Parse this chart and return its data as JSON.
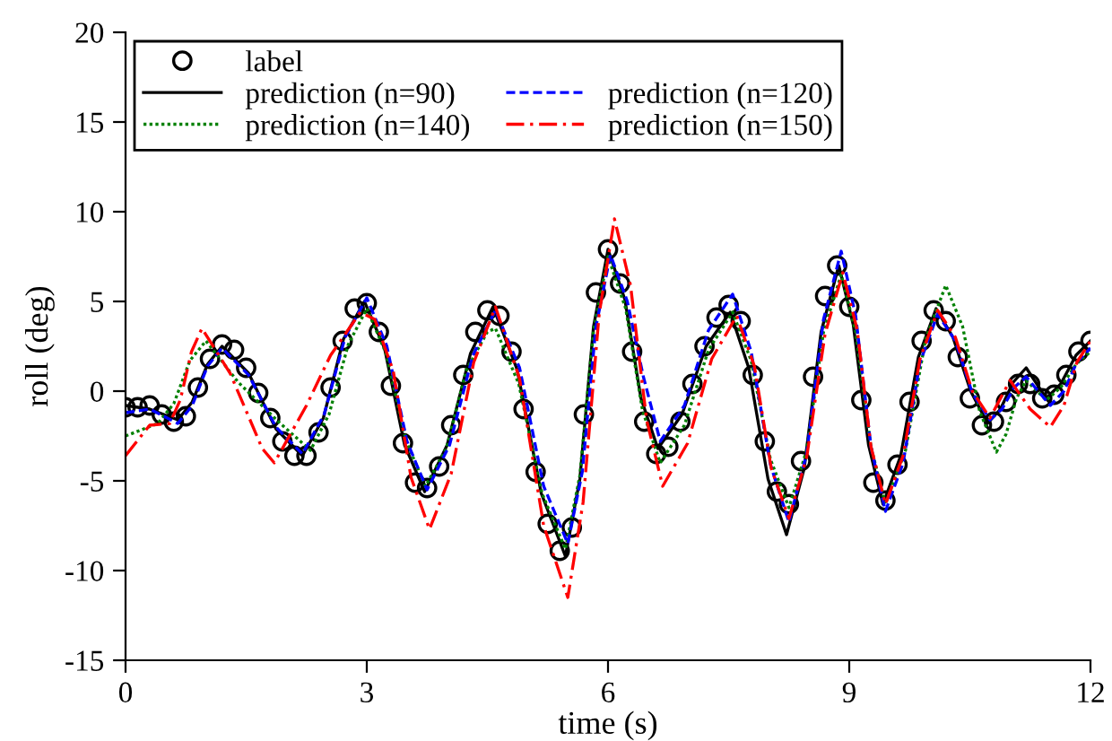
{
  "chart_data": {
    "type": "line",
    "xlabel": "time (s)",
    "ylabel": "roll (deg)",
    "xlim": [
      0,
      12
    ],
    "xticks": [
      0,
      3,
      6,
      9,
      12
    ],
    "ylim": [
      -15,
      20
    ],
    "yticks": [
      -15,
      -10,
      -5,
      0,
      5,
      10,
      15,
      20
    ],
    "grid": false,
    "legend": "top left",
    "series": [
      {
        "name": "label",
        "type": "scatter",
        "marker": "circle",
        "color": "#000000",
        "x": [
          0,
          0.15,
          0.3,
          0.45,
          0.6,
          0.75,
          0.9,
          1.05,
          1.2,
          1.35,
          1.5,
          1.65,
          1.8,
          1.95,
          2.1,
          2.25,
          2.4,
          2.55,
          2.7,
          2.85,
          3.0,
          3.15,
          3.3,
          3.45,
          3.6,
          3.75,
          3.9,
          4.05,
          4.2,
          4.35,
          4.5,
          4.65,
          4.8,
          4.95,
          5.1,
          5.25,
          5.4,
          5.55,
          5.7,
          5.85,
          6.0,
          6.15,
          6.3,
          6.45,
          6.6,
          6.75,
          6.9,
          7.05,
          7.2,
          7.35,
          7.5,
          7.65,
          7.8,
          7.95,
          8.1,
          8.25,
          8.4,
          8.55,
          8.7,
          8.85,
          9.0,
          9.15,
          9.3,
          9.45,
          9.6,
          9.75,
          9.9,
          10.05,
          10.2,
          10.35,
          10.5,
          10.65,
          10.8,
          10.95,
          11.1,
          11.25,
          11.4,
          11.55,
          11.7,
          11.85,
          12.0
        ],
        "values": [
          -0.9,
          -0.9,
          -0.8,
          -1.3,
          -1.7,
          -1.4,
          0.2,
          1.8,
          2.6,
          2.3,
          1.3,
          -0.1,
          -1.5,
          -2.8,
          -3.6,
          -3.6,
          -2.3,
          0.2,
          2.8,
          4.6,
          4.9,
          3.3,
          0.3,
          -2.9,
          -5.1,
          -5.4,
          -4.2,
          -1.9,
          0.9,
          3.3,
          4.5,
          4.2,
          2.2,
          -1.0,
          -4.5,
          -7.4,
          -8.9,
          -7.6,
          -1.3,
          5.5,
          7.9,
          6.0,
          2.2,
          -1.7,
          -3.5,
          -3.1,
          -1.7,
          0.4,
          2.5,
          4.1,
          4.8,
          3.9,
          0.9,
          -2.8,
          -5.6,
          -6.3,
          -3.9,
          0.8,
          5.3,
          7.0,
          4.7,
          -0.5,
          -5.1,
          -6.1,
          -4.1,
          -0.6,
          2.8,
          4.5,
          3.9,
          1.9,
          -0.4,
          -1.9,
          -1.7,
          -0.6,
          0.4,
          0.4,
          -0.4,
          -0.2,
          0.9,
          2.2,
          2.8
        ]
      },
      {
        "name": "prediction (n=90)",
        "color": "#000000",
        "line_style": "solid",
        "x": [
          0,
          0.3,
          0.65,
          0.83,
          1.02,
          1.2,
          1.53,
          1.87,
          2.2,
          2.46,
          2.71,
          2.97,
          3.22,
          3.47,
          3.72,
          4.0,
          4.29,
          4.57,
          4.87,
          5.17,
          5.47,
          5.65,
          5.82,
          6.0,
          6.21,
          6.41,
          6.62,
          6.92,
          7.22,
          7.52,
          7.75,
          7.99,
          8.22,
          8.44,
          8.65,
          8.87,
          9.05,
          9.24,
          9.42,
          9.64,
          9.86,
          10.08,
          10.29,
          10.51,
          10.72,
          10.88,
          11.04,
          11.2,
          11.45,
          11.63,
          11.82,
          12
        ],
        "values": [
          -0.8,
          -1.0,
          -1.6,
          -0.6,
          1.5,
          2.5,
          1.0,
          -2.1,
          -3.6,
          -1.5,
          2.9,
          5.0,
          2.4,
          -3.0,
          -5.6,
          -3.0,
          2.1,
          4.7,
          1.2,
          -5.7,
          -9.2,
          -4.9,
          3.6,
          7.9,
          5.1,
          -0.4,
          -3.2,
          -1.3,
          2.5,
          4.4,
          1.3,
          -4.9,
          -8.0,
          -4.3,
          3.3,
          7.0,
          3.7,
          -3.0,
          -6.3,
          -3.6,
          1.9,
          4.6,
          3.0,
          0.0,
          -1.8,
          -1.0,
          0.5,
          1.3,
          -0.4,
          0.4,
          2.0,
          2.8
        ]
      },
      {
        "name": "prediction (n=140)",
        "color": "#008000",
        "line_style": "dotted",
        "x": [
          0,
          0.4,
          0.6,
          0.8,
          1.0,
          1.4,
          1.9,
          2.3,
          2.53,
          2.77,
          3.0,
          3.24,
          3.49,
          3.73,
          3.99,
          4.24,
          4.5,
          4.6,
          4.89,
          5.18,
          5.47,
          5.65,
          5.82,
          6.0,
          6.22,
          6.43,
          6.65,
          6.95,
          7.25,
          7.55,
          7.78,
          8.02,
          8.25,
          8.47,
          8.68,
          8.9,
          9.08,
          9.27,
          9.45,
          9.7,
          9.95,
          10.2,
          10.41,
          10.62,
          10.83,
          10.95,
          11.08,
          11.2,
          11.45,
          11.63,
          11.82,
          12
        ],
        "values": [
          -2.5,
          -1.8,
          -0.7,
          1.7,
          2.8,
          0.5,
          -1.7,
          -3.3,
          -1.3,
          2.6,
          4.6,
          2.1,
          -2.8,
          -5.3,
          -3.2,
          1.2,
          3.3,
          3.5,
          0.4,
          -5.7,
          -8.8,
          -4.7,
          3.4,
          7.5,
          4.6,
          -1.1,
          -4.0,
          -1.9,
          2.3,
          4.4,
          1.7,
          -3.8,
          -6.5,
          -3.3,
          3.3,
          6.5,
          3.3,
          -3.1,
          -6.3,
          -3.3,
          2.9,
          5.9,
          3.6,
          -1.1,
          -3.4,
          -2.4,
          -0.4,
          0.6,
          -0.5,
          0.2,
          1.5,
          2.2
        ]
      },
      {
        "name": "prediction (n=120)",
        "color": "#0000ff",
        "line_style": "dashed",
        "x": [
          0,
          0.3,
          0.65,
          0.83,
          1.02,
          1.2,
          1.53,
          1.87,
          2.2,
          2.47,
          2.73,
          3.0,
          3.25,
          3.5,
          3.75,
          4.03,
          4.32,
          4.6,
          4.9,
          5.2,
          5.5,
          5.68,
          5.85,
          6.03,
          6.24,
          6.44,
          6.65,
          6.95,
          7.25,
          7.55,
          7.78,
          8.02,
          8.25,
          8.47,
          8.68,
          8.9,
          9.08,
          9.27,
          9.45,
          9.67,
          9.88,
          10.1,
          10.32,
          10.53,
          10.75,
          10.9,
          11.05,
          11.2,
          11.5,
          11.67,
          11.83,
          12
        ],
        "values": [
          -1.2,
          -1.0,
          -1.8,
          -0.8,
          1.4,
          2.4,
          0.9,
          -2.0,
          -3.5,
          -1.3,
          3.0,
          5.2,
          2.5,
          -2.8,
          -5.5,
          -3.0,
          2.0,
          4.5,
          1.3,
          -5.3,
          -8.5,
          -4.5,
          3.6,
          7.6,
          5.0,
          0.8,
          -2.8,
          -0.8,
          3.4,
          5.4,
          2.2,
          -4.1,
          -7.3,
          -3.5,
          4.0,
          7.8,
          4.2,
          -3.1,
          -6.7,
          -4.0,
          1.6,
          4.3,
          2.8,
          -0.1,
          -1.6,
          -1.0,
          0.2,
          0.8,
          -0.8,
          0.0,
          1.6,
          2.4
        ]
      },
      {
        "name": "prediction (n=150)",
        "color": "#ff0000",
        "line_style": "dashdot",
        "x": [
          0,
          0.3,
          0.55,
          0.68,
          0.82,
          0.95,
          1.3,
          1.7,
          1.85,
          2.25,
          2.55,
          2.92,
          3.1,
          3.33,
          3.55,
          3.78,
          4.05,
          4.33,
          4.6,
          4.9,
          5.2,
          5.5,
          5.69,
          5.89,
          6.08,
          6.28,
          6.48,
          6.68,
          6.99,
          7.29,
          7.6,
          7.82,
          8.03,
          8.25,
          8.47,
          8.7,
          8.92,
          9.1,
          9.27,
          9.45,
          9.67,
          9.88,
          10.1,
          10.32,
          10.53,
          10.75,
          11.0,
          11.25,
          11.5,
          11.67,
          11.83,
          12
        ],
        "values": [
          -3.6,
          -1.9,
          -1.8,
          -0.5,
          2.2,
          3.5,
          1.0,
          -3.2,
          -4.0,
          -0.8,
          2.0,
          4.4,
          4.0,
          1.1,
          -4.8,
          -7.7,
          -4.6,
          1.6,
          4.7,
          0.7,
          -7.5,
          -11.5,
          -6.2,
          4.3,
          9.6,
          5.9,
          -1.6,
          -5.3,
          -2.9,
          1.8,
          4.2,
          1.4,
          -4.3,
          -7.1,
          -3.7,
          3.2,
          6.6,
          3.4,
          -3.1,
          -6.3,
          -3.6,
          1.8,
          4.5,
          3.0,
          0.0,
          -1.5,
          0.6,
          -1.0,
          -2.0,
          -0.8,
          1.6,
          2.8
        ]
      }
    ]
  }
}
